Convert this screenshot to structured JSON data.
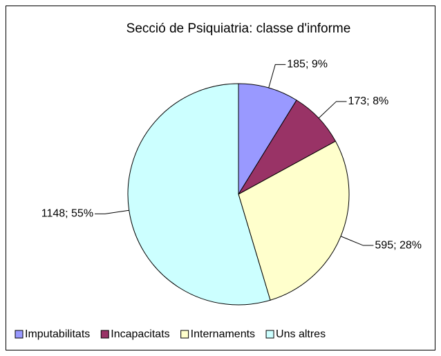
{
  "chart_data": {
    "type": "pie",
    "title": "Secció de Psiquiatria: classe d'informe",
    "categories": [
      "Imputabilitats",
      "Incapacitats",
      "Internaments",
      "Uns altres"
    ],
    "values": [
      185,
      173,
      595,
      1148
    ],
    "value_labels": [
      "185; 9%",
      "173; 8%",
      "595; 28%",
      "1148; 55%"
    ],
    "colors": [
      "#9999ff",
      "#993366",
      "#ffffcc",
      "#ccffff"
    ],
    "legend": "bottom"
  }
}
